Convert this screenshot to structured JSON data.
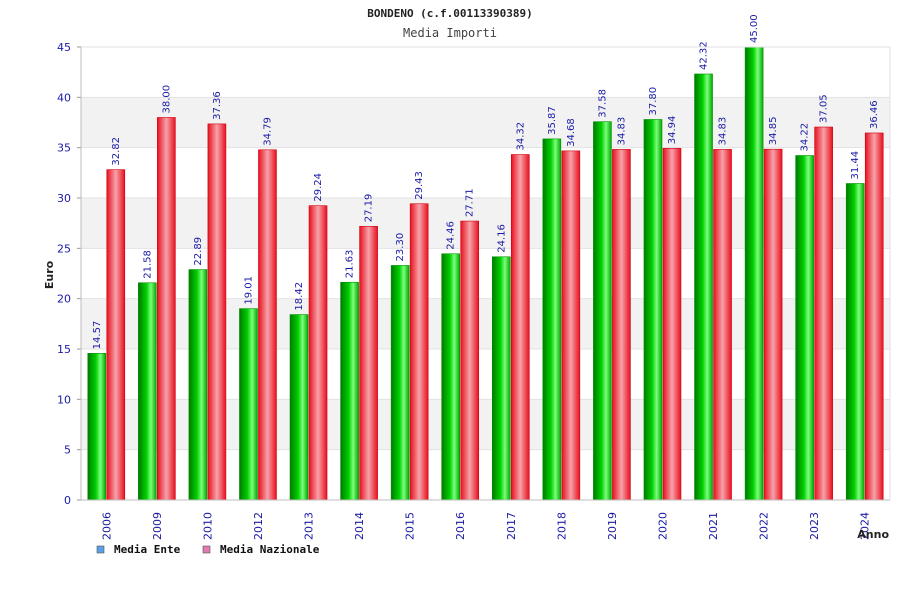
{
  "chart_data": {
    "type": "bar",
    "title": "BONDENO (c.f.00113390389)",
    "subtitle": "Media Importi",
    "xlabel": "Anno",
    "ylabel": "Euro",
    "ylim": [
      0,
      45
    ],
    "yticks": [
      0,
      5,
      10,
      15,
      20,
      25,
      30,
      35,
      40,
      45
    ],
    "grid": "horizontal alternating bands",
    "legend_position": "bottom-left",
    "categories": [
      "2006",
      "2009",
      "2010",
      "2012",
      "2013",
      "2014",
      "2015",
      "2016",
      "2017",
      "2018",
      "2019",
      "2020",
      "2021",
      "2022",
      "2023",
      "2024"
    ],
    "series": [
      {
        "name": "Media Ente",
        "color": "#00c000",
        "legend_color": "#5aa0e6",
        "values": [
          14.57,
          21.58,
          22.89,
          19.01,
          18.42,
          21.63,
          23.3,
          24.46,
          24.16,
          35.87,
          37.58,
          37.8,
          42.32,
          45.0,
          34.22,
          31.44
        ],
        "labels": [
          "14.57",
          "21.58",
          "22.89",
          "19.01",
          "18.42",
          "21.63",
          "23.30",
          "24.46",
          "24.16",
          "35.87",
          "37.58",
          "37.80",
          "42.32",
          "45.00",
          "34.22",
          "31.44"
        ]
      },
      {
        "name": "Media Nazionale",
        "color": "#f01c2c",
        "legend_color": "#e07ab0",
        "values": [
          32.82,
          38.0,
          37.36,
          34.79,
          29.24,
          27.19,
          29.43,
          27.71,
          34.32,
          34.68,
          34.83,
          34.94,
          34.83,
          34.85,
          37.05,
          36.46
        ],
        "labels": [
          "32.82",
          "38.00",
          "37.36",
          "34.79",
          "29.24",
          "27.19",
          "29.43",
          "27.71",
          "34.32",
          "34.68",
          "34.83",
          "34.94",
          "34.83",
          "34.85",
          "37.05",
          "36.46"
        ]
      }
    ]
  }
}
